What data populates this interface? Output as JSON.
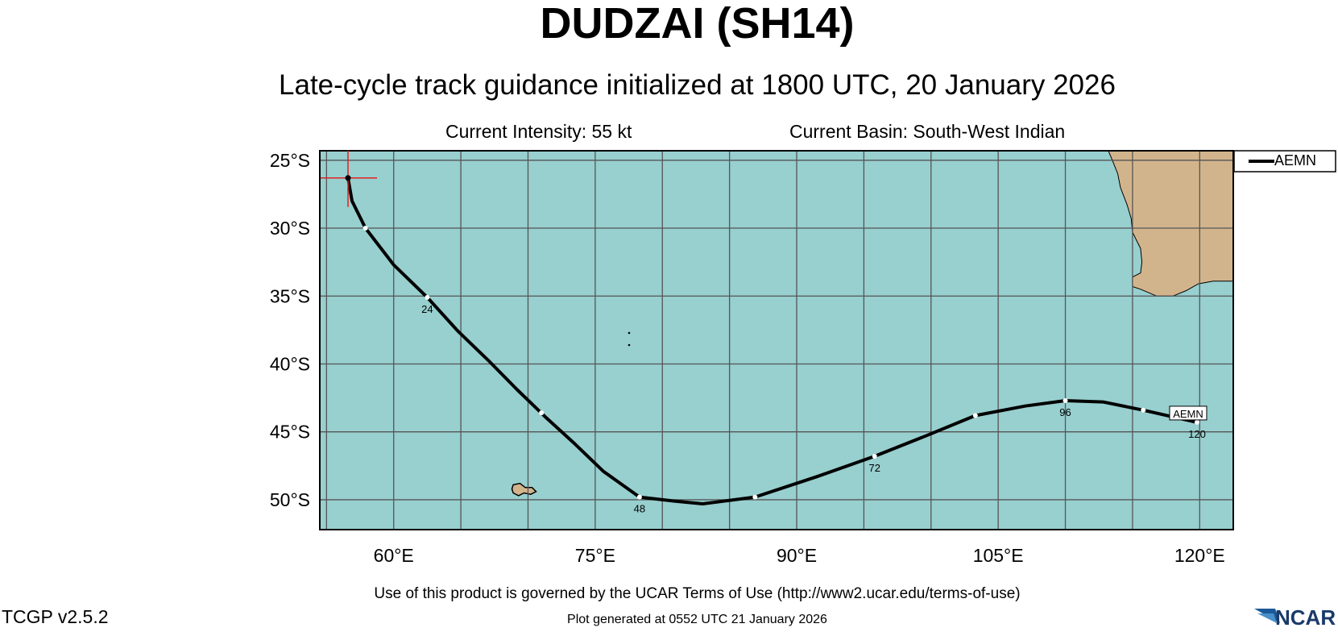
{
  "header": {
    "storm_title": "DUDZAI (SH14)",
    "subtitle": "Late-cycle track guidance initialized at 1800 UTC, 20 January 2026",
    "current_intensity": "Current Intensity: 55 kt",
    "current_basin": "Current Basin: South-West Indian"
  },
  "footer": {
    "terms": "Use of this product is governed by the UCAR Terms of Use (http://www2.ucar.edu/terms-of-use)",
    "generated": "Plot generated at 0552 UTC   21 January 2026",
    "version": "TCGP v2.5.2",
    "logo_text": "NCAR"
  },
  "map": {
    "lon_range": [
      54.5,
      122.5
    ],
    "lat_range": [
      -52.2,
      -24.3
    ],
    "lon_ticks": [
      60,
      75,
      90,
      105,
      120
    ],
    "lon_tick_labels": [
      "60°E",
      "75°E",
      "90°E",
      "105°E",
      "120°E"
    ],
    "lat_ticks": [
      -25,
      -30,
      -35,
      -40,
      -45,
      -50
    ],
    "lat_tick_labels": [
      "25°S",
      "30°S",
      "35°S",
      "40°S",
      "45°S",
      "50°S"
    ],
    "grid": true,
    "ocean_color": "#98cfcf",
    "land_color": "#d2b48c"
  },
  "chart_data": {
    "type": "line",
    "legend": {
      "position": "top-right",
      "entries": [
        "AEMN"
      ]
    },
    "current_position": {
      "lon": 56.6,
      "lat": -26.3
    },
    "series": [
      {
        "name": "AEMN",
        "color": "#000000",
        "points": [
          {
            "lon": 56.6,
            "lat": -26.3
          },
          {
            "lon": 56.9,
            "lat": -28.0
          },
          {
            "lon": 57.9,
            "lat": -30.0
          },
          {
            "lon": 60.0,
            "lat": -32.7
          },
          {
            "lon": 62.5,
            "lat": -35.1
          },
          {
            "lon": 64.8,
            "lat": -37.6
          },
          {
            "lon": 67.0,
            "lat": -39.7
          },
          {
            "lon": 69.2,
            "lat": -41.9
          },
          {
            "lon": 71.4,
            "lat": -44.0
          },
          {
            "lon": 73.5,
            "lat": -45.9
          },
          {
            "lon": 75.6,
            "lat": -47.9
          },
          {
            "lon": 78.3,
            "lat": -49.8
          },
          {
            "lon": 80.9,
            "lat": -50.1
          },
          {
            "lon": 83.0,
            "lat": -50.3
          },
          {
            "lon": 86.9,
            "lat": -49.8
          },
          {
            "lon": 91.5,
            "lat": -48.3
          },
          {
            "lon": 95.8,
            "lat": -46.8
          },
          {
            "lon": 99.6,
            "lat": -45.3
          },
          {
            "lon": 103.3,
            "lat": -43.8
          },
          {
            "lon": 107.0,
            "lat": -43.1
          },
          {
            "lon": 110.0,
            "lat": -42.7
          },
          {
            "lon": 112.8,
            "lat": -42.8
          },
          {
            "lon": 115.8,
            "lat": -43.4
          },
          {
            "lon": 119.8,
            "lat": -44.3
          }
        ],
        "tau_markers": [
          {
            "tau": "24",
            "lon": 62.5,
            "lat": -35.1
          },
          {
            "tau": "48",
            "lon": 78.3,
            "lat": -49.8
          },
          {
            "tau": "72",
            "lon": 95.8,
            "lat": -46.8
          },
          {
            "tau": "96",
            "lon": 110.0,
            "lat": -42.7
          },
          {
            "tau": "120",
            "lon": 119.8,
            "lat": -44.3
          }
        ],
        "intermediate_markers": [
          {
            "lon": 57.9,
            "lat": -30.0
          },
          {
            "lon": 71.0,
            "lat": -43.6
          },
          {
            "lon": 86.9,
            "lat": -49.8
          },
          {
            "lon": 103.3,
            "lat": -43.8
          },
          {
            "lon": 115.8,
            "lat": -43.4
          }
        ],
        "end_label": "AEMN"
      }
    ]
  }
}
